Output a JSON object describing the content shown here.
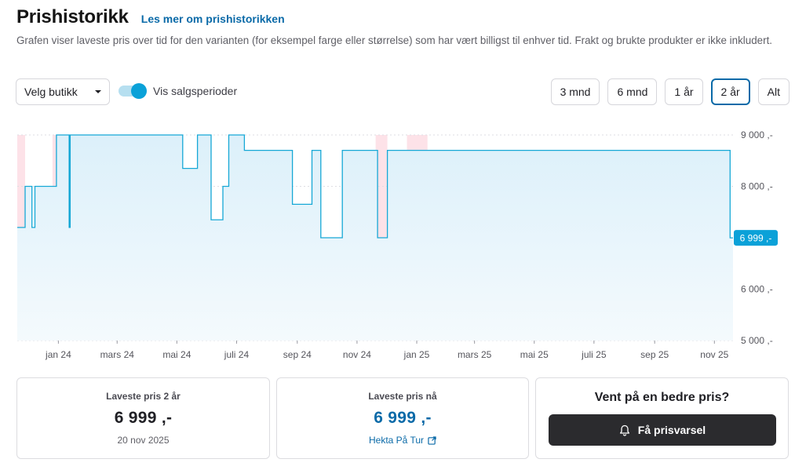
{
  "header": {
    "title": "Prishistorikk",
    "link": "Les mer om prishistorikken",
    "description": "Grafen viser laveste pris over tid for den varianten (for eksempel farge eller størrelse) som har vært billigst til enhver tid. Frakt og brukte produkter er ikke inkludert."
  },
  "controls": {
    "store_select": "Velg butikk",
    "sale_toggle_label": "Vis salgsperioder",
    "sale_toggle_on": true,
    "ranges": [
      "3 mnd",
      "6 mnd",
      "1 år",
      "2 år",
      "Alt"
    ],
    "active_range": "2 år"
  },
  "chart_data": {
    "type": "line",
    "line_color": "#16a8d6",
    "fill_color": "#e6f4fa",
    "sale_period_color": "#fde2e8",
    "current_label": "6 999 ,-",
    "ylim": [
      5000,
      9000
    ],
    "y_ticks": [
      {
        "value": 9000,
        "label": "9 000 ,-"
      },
      {
        "value": 8000,
        "label": "8 000 ,-"
      },
      {
        "value": 6000,
        "label": "6 000 ,-"
      },
      {
        "value": 5000,
        "label": "5 000 ,-"
      }
    ],
    "xlim": [
      "2023-11-20",
      "2025-11-20"
    ],
    "x_ticks": [
      {
        "date": "2024-01-01",
        "label": "jan 24"
      },
      {
        "date": "2024-03-01",
        "label": "mars 24"
      },
      {
        "date": "2024-05-01",
        "label": "mai 24"
      },
      {
        "date": "2024-07-01",
        "label": "juli 24"
      },
      {
        "date": "2024-09-01",
        "label": "sep 24"
      },
      {
        "date": "2024-11-01",
        "label": "nov 24"
      },
      {
        "date": "2025-01-01",
        "label": "jan 25"
      },
      {
        "date": "2025-03-01",
        "label": "mars 25"
      },
      {
        "date": "2025-05-01",
        "label": "mai 25"
      },
      {
        "date": "2025-07-01",
        "label": "juli 25"
      },
      {
        "date": "2025-09-01",
        "label": "sep 25"
      },
      {
        "date": "2025-11-01",
        "label": "nov 25"
      }
    ],
    "sale_periods": [
      [
        "2023-11-20",
        "2023-11-28"
      ],
      [
        "2023-12-26",
        "2024-01-15"
      ],
      [
        "2024-11-20",
        "2024-12-02"
      ],
      [
        "2024-12-22",
        "2025-01-12"
      ]
    ],
    "series": [
      {
        "points": [
          [
            "2023-11-20",
            7200
          ],
          [
            "2023-11-28",
            7200
          ],
          [
            "2023-11-28",
            8000
          ],
          [
            "2023-12-05",
            8000
          ],
          [
            "2023-12-05",
            7200
          ],
          [
            "2023-12-08",
            7200
          ],
          [
            "2023-12-08",
            8000
          ],
          [
            "2023-12-30",
            8000
          ],
          [
            "2023-12-30",
            9000
          ],
          [
            "2024-01-12",
            9000
          ],
          [
            "2024-01-12",
            7200
          ],
          [
            "2024-01-13",
            7200
          ],
          [
            "2024-01-13",
            9000
          ],
          [
            "2024-05-07",
            9000
          ],
          [
            "2024-05-07",
            8350
          ],
          [
            "2024-05-22",
            8350
          ],
          [
            "2024-05-22",
            9000
          ],
          [
            "2024-06-05",
            9000
          ],
          [
            "2024-06-05",
            7350
          ],
          [
            "2024-06-17",
            7350
          ],
          [
            "2024-06-17",
            8000
          ],
          [
            "2024-06-23",
            8000
          ],
          [
            "2024-06-23",
            9000
          ],
          [
            "2024-07-09",
            9000
          ],
          [
            "2024-07-09",
            8700
          ],
          [
            "2024-08-27",
            8700
          ],
          [
            "2024-08-27",
            7650
          ],
          [
            "2024-09-16",
            7650
          ],
          [
            "2024-09-16",
            8700
          ],
          [
            "2024-09-25",
            8700
          ],
          [
            "2024-09-25",
            7000
          ],
          [
            "2024-10-17",
            7000
          ],
          [
            "2024-10-17",
            8700
          ],
          [
            "2024-11-22",
            8700
          ],
          [
            "2024-11-22",
            7000
          ],
          [
            "2024-12-02",
            7000
          ],
          [
            "2024-12-02",
            8700
          ],
          [
            "2025-11-17",
            8700
          ],
          [
            "2025-11-17",
            6999
          ],
          [
            "2025-11-20",
            6999
          ]
        ]
      }
    ]
  },
  "stats": {
    "lowest_period": {
      "label": "Laveste pris 2 år",
      "price": "6 999 ,-",
      "date": "20 nov 2025"
    },
    "lowest_now": {
      "label": "Laveste pris nå",
      "price": "6 999 ,-",
      "store": "Hekta På Tur"
    },
    "alert": {
      "title": "Vent på en bedre pris?",
      "button": "Få prisvarsel"
    }
  }
}
